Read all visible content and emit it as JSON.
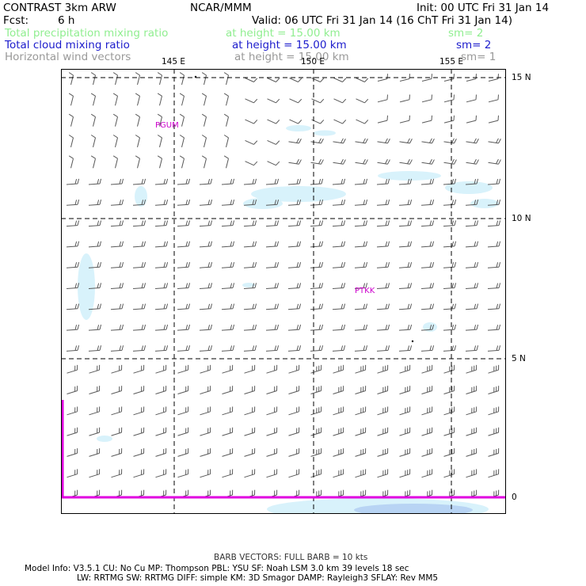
{
  "header": {
    "model": "CONTRAST  3km ARW",
    "center": "NCAR/MMM",
    "init": "Init: 00 UTC Fri 31 Jan 14",
    "fcst_label": "Fcst:",
    "fcst_value": "6 h",
    "valid": "Valid: 06 UTC Fri 31 Jan 14 (16 ChT Fri 31 Jan 14)"
  },
  "fields": [
    {
      "name": "Total precipitation mixing ratio",
      "height": "at height = 15.00 km",
      "sm": "sm= 2",
      "color": "#90ee90"
    },
    {
      "name": "Total cloud mixing ratio",
      "height": "at height = 15.00 km",
      "sm": "sm= 2",
      "color": "#1c1ccc"
    },
    {
      "name": "Horizontal wind vectors",
      "height": "at height = 15.00 km",
      "sm": "sm= 1",
      "color": "#999999"
    }
  ],
  "map": {
    "lon_labels": [
      "145 E",
      "150 E",
      "155 E"
    ],
    "lat_labels": [
      "15 N",
      "10 N",
      "5 N",
      "0"
    ],
    "stations": [
      "PGUM",
      "PTKK"
    ],
    "colors": {
      "barb": "#5a5a5a",
      "cloud": "#d8f2fb",
      "cloud_dark": "#b8d4f4",
      "station": "#cc00cc",
      "border": "#e000e0"
    }
  },
  "footer": {
    "barb_note": "BARB VECTORS:  FULL BARB = 10 kts",
    "line1": "Model Info: V3.5.1     CU: No Cu     MP: Thompson     PBL: YSU      SF: Noah LSM      3.0 km   39 levels    18 sec",
    "line2": "LW: RRTMG     SW: RRTMG   DIFF: simple KM: 3D Smagor DAMP: Rayleigh3   SFLAY: Rev MM5"
  }
}
